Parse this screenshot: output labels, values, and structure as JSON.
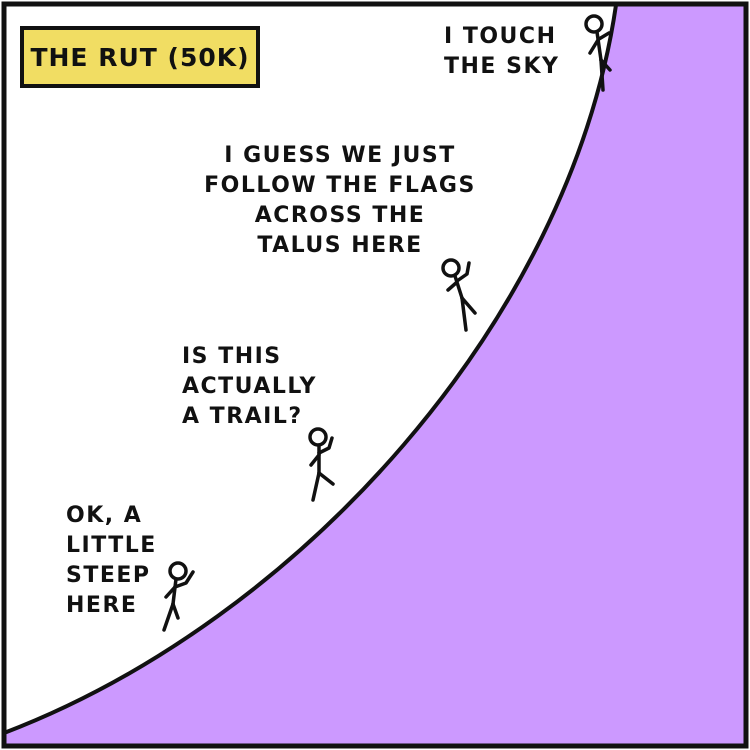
{
  "title": "THE RUT (50K)",
  "colors": {
    "mountain": "#cc99ff",
    "title_box": "#f1dd63",
    "ink": "#111111",
    "background": "#ffffff"
  },
  "captions": {
    "sky": [
      "I TOUCH",
      "THE SKY"
    ],
    "flags": [
      "I GUESS WE JUST",
      "FOLLOW THE FLAGS",
      "ACROSS THE",
      "TALUS HERE"
    ],
    "trail": [
      "IS THIS",
      "ACTUALLY",
      "A TRAIL?"
    ],
    "steep": [
      "OK, A",
      "LITTLE",
      "STEEP",
      "HERE"
    ]
  }
}
